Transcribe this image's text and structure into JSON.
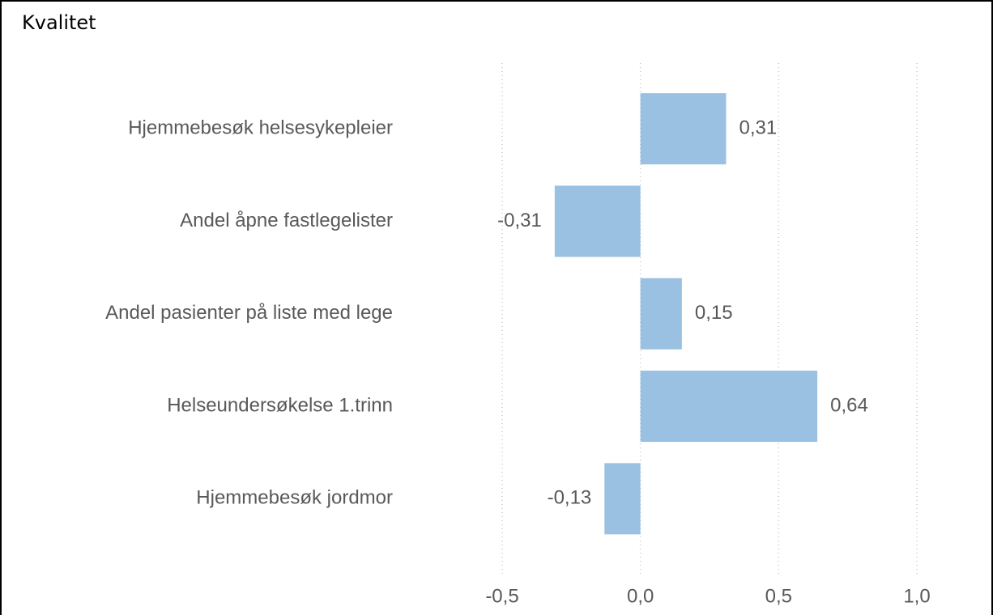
{
  "chart_data": {
    "type": "hbar",
    "title": "Kvalitet",
    "categories": [
      "Hjemmebesøk helsesykepleier",
      "Andel åpne fastlegelister",
      "Andel pasienter på liste med lege",
      "Helseundersøkelse 1.trinn",
      "Hjemmebesøk jordmor"
    ],
    "values": [
      0.31,
      -0.31,
      0.15,
      0.64,
      -0.13
    ],
    "value_labels": [
      "0,31",
      "-0,31",
      "0,15",
      "0,64",
      "-0,13"
    ],
    "color": "#9ac1e2",
    "xlim": [
      -0.5,
      1.0
    ],
    "xticks": [
      {
        "value": -0.5,
        "label": "-0,5"
      },
      {
        "value": 0,
        "label": "0,0"
      },
      {
        "value": 0.5,
        "label": "0,5"
      },
      {
        "value": 1.0,
        "label": "1,0"
      }
    ],
    "grid": true
  }
}
